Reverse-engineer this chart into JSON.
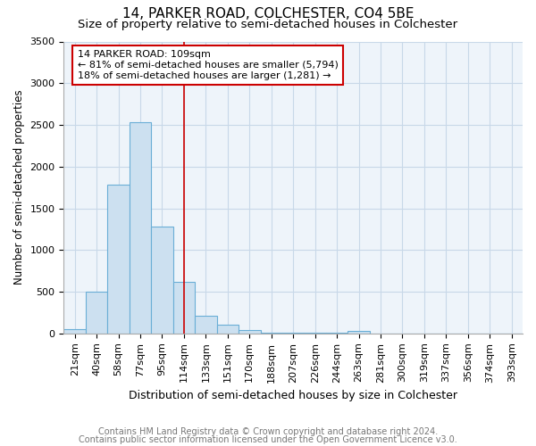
{
  "title1": "14, PARKER ROAD, COLCHESTER, CO4 5BE",
  "title2": "Size of property relative to semi-detached houses in Colchester",
  "xlabel": "Distribution of semi-detached houses by size in Colchester",
  "ylabel": "Number of semi-detached properties",
  "categories": [
    "21sqm",
    "40sqm",
    "58sqm",
    "77sqm",
    "95sqm",
    "114sqm",
    "133sqm",
    "151sqm",
    "170sqm",
    "188sqm",
    "207sqm",
    "226sqm",
    "244sqm",
    "263sqm",
    "281sqm",
    "300sqm",
    "319sqm",
    "337sqm",
    "356sqm",
    "374sqm",
    "393sqm"
  ],
  "values": [
    50,
    500,
    1780,
    2530,
    1280,
    620,
    210,
    100,
    40,
    5,
    5,
    5,
    5,
    30,
    0,
    0,
    0,
    0,
    0,
    0,
    0
  ],
  "bar_color": "#cce0f0",
  "bar_edge_color": "#6aaed6",
  "annotation_box_text_line1": "14 PARKER ROAD: 109sqm",
  "annotation_box_text_line2": "← 81% of semi-detached houses are smaller (5,794)",
  "annotation_box_text_line3": "18% of semi-detached houses are larger (1,281) →",
  "box_color": "white",
  "box_edge_color": "#cc0000",
  "vline_color": "#cc0000",
  "vline_x": 5.0,
  "grid_color": "#c8d8e8",
  "bg_color": "#eef4fa",
  "footnote1": "Contains HM Land Registry data © Crown copyright and database right 2024.",
  "footnote2": "Contains public sector information licensed under the Open Government Licence v3.0.",
  "ylim": [
    0,
    3500
  ],
  "yticks": [
    0,
    500,
    1000,
    1500,
    2000,
    2500,
    3000,
    3500
  ],
  "title1_fontsize": 11,
  "title2_fontsize": 9.5,
  "xlabel_fontsize": 9,
  "ylabel_fontsize": 8.5,
  "tick_fontsize": 8,
  "footnote_fontsize": 7
}
